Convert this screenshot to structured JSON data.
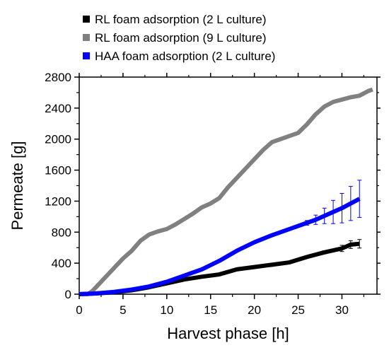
{
  "chart_data": {
    "type": "line",
    "xlabel": "Harvest phase [h]",
    "ylabel": "Permeate [g]",
    "xlim": [
      0,
      34
    ],
    "ylim": [
      0,
      2800
    ],
    "x_ticks": [
      0,
      5,
      10,
      15,
      20,
      25,
      30
    ],
    "y_ticks": [
      0,
      400,
      800,
      1200,
      1600,
      2000,
      2400,
      2800
    ],
    "legend_position": "top-left",
    "series": [
      {
        "name": "RL foam adsorption (2 L culture)",
        "color": "#000000",
        "x": [
          0,
          2,
          4,
          6,
          8,
          10,
          12,
          14,
          16,
          18,
          20,
          22,
          24,
          26,
          28,
          30,
          31,
          32
        ],
        "y": [
          0,
          10,
          25,
          50,
          90,
          140,
          190,
          225,
          255,
          320,
          350,
          380,
          410,
          480,
          540,
          590,
          640,
          650
        ],
        "error": [
          0,
          0,
          0,
          0,
          0,
          0,
          0,
          0,
          0,
          0,
          0,
          0,
          0,
          10,
          20,
          40,
          50,
          55
        ]
      },
      {
        "name": "RL foam adsorption (9 L culture)",
        "color": "#808080",
        "x": [
          0,
          1,
          1.5,
          2,
          3,
          4,
          5,
          6,
          7,
          8,
          9,
          10,
          11,
          12,
          13,
          14,
          15,
          16,
          17,
          18,
          19,
          20,
          21,
          22,
          23,
          24,
          25,
          26,
          27,
          28,
          29,
          30,
          31,
          32,
          33,
          33.5
        ],
        "y": [
          0,
          0,
          40,
          100,
          220,
          340,
          460,
          560,
          690,
          770,
          810,
          840,
          900,
          970,
          1040,
          1120,
          1170,
          1240,
          1380,
          1500,
          1620,
          1740,
          1860,
          1960,
          2000,
          2040,
          2080,
          2190,
          2320,
          2420,
          2480,
          2510,
          2540,
          2560,
          2620,
          2640
        ]
      },
      {
        "name": "HAA foam adsorption (2 L culture)",
        "color": "#0000ff",
        "x": [
          0,
          2,
          4,
          6,
          8,
          10,
          12,
          14,
          16,
          18,
          20,
          22,
          24,
          26,
          27,
          28,
          29,
          30,
          31,
          32
        ],
        "y": [
          0,
          10,
          30,
          60,
          100,
          160,
          240,
          320,
          430,
          560,
          670,
          760,
          840,
          920,
          960,
          1010,
          1060,
          1110,
          1170,
          1230
        ],
        "error": [
          0,
          0,
          0,
          0,
          0,
          0,
          0,
          0,
          0,
          0,
          0,
          0,
          10,
          30,
          60,
          100,
          150,
          190,
          220,
          240
        ]
      }
    ]
  }
}
